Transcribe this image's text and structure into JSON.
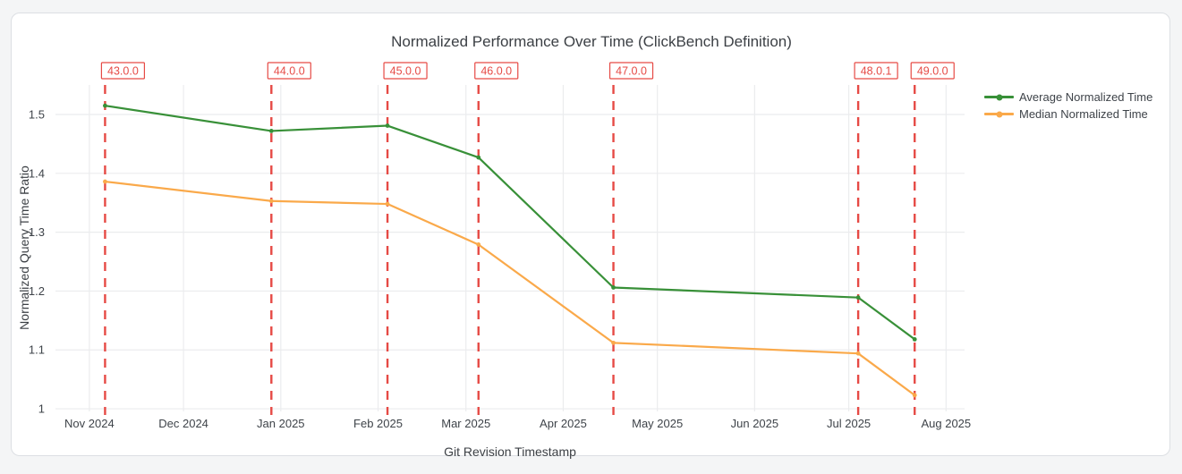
{
  "chart_data": {
    "type": "line",
    "title": "Normalized Performance Over Time (ClickBench Definition)",
    "xlabel": "Git Revision Timestamp",
    "ylabel": "Normalized Query Time Ratio",
    "grid": true,
    "legend_position": "right-outside-top",
    "x_tick_labels": [
      "Nov 2024",
      "Dec 2024",
      "Jan 2025",
      "Feb 2025",
      "Mar 2025",
      "Apr 2025",
      "May 2025",
      "Jun 2025",
      "Jul 2025",
      "Aug 2025"
    ],
    "y_ticks": [
      1,
      1.1,
      1.2,
      1.3,
      1.4,
      1.5
    ],
    "y_tick_labels": [
      "1",
      "1.1",
      "1.2",
      "1.3",
      "1.4",
      "1.5"
    ],
    "ylim": [
      0.9955,
      1.5502
    ],
    "x_days_from_nov1_2024": [
      5,
      58,
      95,
      124,
      167,
      245,
      263
    ],
    "series": [
      {
        "name": "Average Normalized Time",
        "color": "#389038",
        "values": [
          1.515,
          1.472,
          1.481,
          1.427,
          1.206,
          1.189,
          1.118
        ]
      },
      {
        "name": "Median Normalized Time",
        "color": "#faa94a",
        "values": [
          1.386,
          1.353,
          1.348,
          1.279,
          1.112,
          1.094,
          1.023
        ]
      }
    ],
    "version_annotations": {
      "color": "#e64a45",
      "labels": [
        "43.0.0",
        "44.0.0",
        "45.0.0",
        "46.0.0",
        "47.0.0",
        "48.0.1",
        "49.0.0"
      ]
    },
    "colors": {
      "grid": "#ebecee",
      "text": "#3e4349",
      "page_bg": "#f4f5f6",
      "card_bg": "#ffffff",
      "card_border": "#dcdfe3"
    }
  }
}
